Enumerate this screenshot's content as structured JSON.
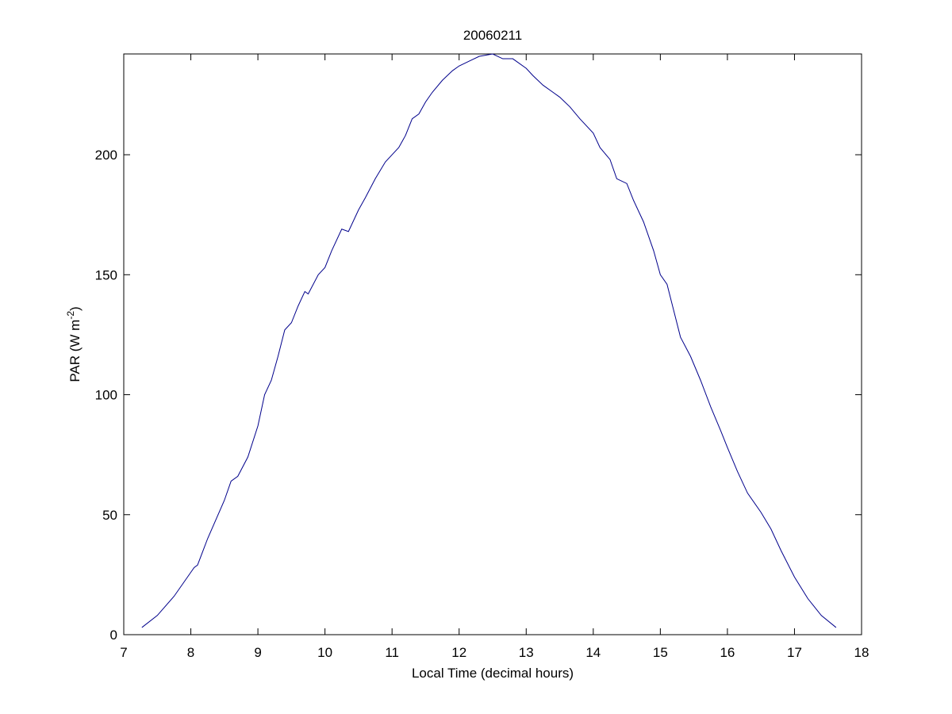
{
  "chart_data": {
    "type": "line",
    "title": "20060211",
    "x_label": "Local Time (decimal hours)",
    "y_label": {
      "main": "PAR (W m",
      "sup": "-2",
      "end": ")"
    },
    "xlim": [
      7,
      18
    ],
    "xticks": [
      7,
      8,
      9,
      10,
      11,
      12,
      13,
      14,
      15,
      16,
      17,
      18
    ],
    "ylim": [
      0,
      242
    ],
    "yticks": [
      0,
      50,
      100,
      150,
      200
    ],
    "grid": false,
    "series": [
      {
        "color": "#00008b",
        "x": [
          7.27,
          7.5,
          7.75,
          8.0,
          8.05,
          8.1,
          8.25,
          8.5,
          8.6,
          8.7,
          8.85,
          9.0,
          9.1,
          9.2,
          9.3,
          9.4,
          9.5,
          9.6,
          9.7,
          9.75,
          9.9,
          10.0,
          10.1,
          10.25,
          10.35,
          10.5,
          10.6,
          10.75,
          10.9,
          11.0,
          11.1,
          11.2,
          11.3,
          11.4,
          11.5,
          11.6,
          11.75,
          11.9,
          12.0,
          12.15,
          12.3,
          12.5,
          12.65,
          12.8,
          13.0,
          13.1,
          13.25,
          13.4,
          13.5,
          13.65,
          13.8,
          14.0,
          14.1,
          14.25,
          14.35,
          14.5,
          14.6,
          14.75,
          14.9,
          15.0,
          15.1,
          15.2,
          15.3,
          15.45,
          15.6,
          15.75,
          15.9,
          16.0,
          16.15,
          16.3,
          16.5,
          16.65,
          16.8,
          17.0,
          17.2,
          17.4,
          17.62
        ],
        "values": [
          3,
          8,
          16,
          26,
          28,
          29,
          40,
          56,
          64,
          66,
          74,
          87,
          100,
          106,
          116,
          127,
          130,
          137,
          143,
          142,
          150,
          153,
          160,
          169,
          168,
          177,
          182,
          190,
          197,
          200,
          203,
          208,
          215,
          217,
          222,
          226,
          231,
          235,
          237,
          239,
          241,
          242,
          240,
          240,
          236,
          233,
          229,
          226,
          224,
          220,
          215,
          209,
          203,
          198,
          190,
          188,
          181,
          172,
          160,
          150,
          146,
          135,
          124,
          116,
          106,
          95,
          85,
          78,
          68,
          59,
          51,
          44,
          35,
          24,
          15,
          8,
          3
        ]
      }
    ]
  }
}
